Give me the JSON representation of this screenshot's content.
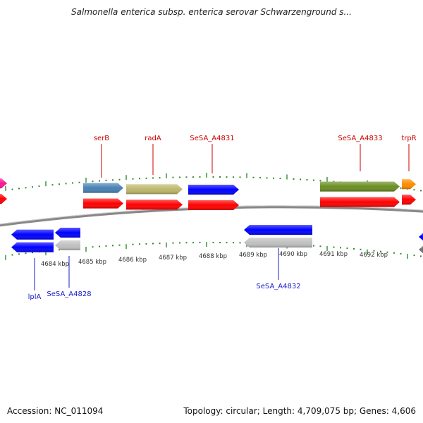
{
  "title": "Salmonella enterica subsp. enterica serovar Schwarzenground s...",
  "footer": {
    "accession": "Accession: NC_011094",
    "summary": "Topology: circular; Length: 4,709,075 bp; Genes: 4,606"
  },
  "colors": {
    "backbone": "#888888",
    "tick": "#2e8b2e",
    "forward_label": "#cc0000",
    "reverse_label": "#1a1acc",
    "scale_text": "#333333"
  },
  "scale": {
    "unit": "kbp",
    "ticks": [
      "4684 kbp",
      "4685 kbp",
      "4686 kbp",
      "4687 kbp",
      "4688 kbp",
      "4689 kbp",
      "4690 kbp",
      "4691 kbp",
      "4692 kbp"
    ]
  },
  "features": [
    {
      "id": "f-left-pink",
      "strand": "+",
      "row": "top",
      "color": "#ff1493",
      "label": ""
    },
    {
      "id": "f-left-red",
      "strand": "+",
      "row": "bottom",
      "color": "#ff0000",
      "label": ""
    },
    {
      "id": "f-serB-gene",
      "strand": "+",
      "row": "top",
      "color": "#4682b4",
      "label": ""
    },
    {
      "id": "f-serB-cds",
      "strand": "+",
      "row": "bottom",
      "color": "#ff0000",
      "label": "serB"
    },
    {
      "id": "f-radA-gene",
      "strand": "+",
      "row": "top",
      "color": "#bdb76b",
      "label": ""
    },
    {
      "id": "f-radA-cds",
      "strand": "+",
      "row": "bottom",
      "color": "#ff0000",
      "label": "radA"
    },
    {
      "id": "f-4831-gene",
      "strand": "+",
      "row": "top",
      "color": "#0000ff",
      "label": ""
    },
    {
      "id": "f-4831-cds",
      "strand": "+",
      "row": "bottom",
      "color": "#ff0000",
      "label": "SeSA_A4831"
    },
    {
      "id": "f-4833-gene",
      "strand": "+",
      "row": "top",
      "color": "#6b8e23",
      "label": ""
    },
    {
      "id": "f-4833-cds",
      "strand": "+",
      "row": "bottom",
      "color": "#ff0000",
      "label": "SeSA_A4833"
    },
    {
      "id": "f-trpR-gene",
      "strand": "+",
      "row": "top",
      "color": "#ff8c00",
      "label": ""
    },
    {
      "id": "f-trpR-cds",
      "strand": "+",
      "row": "bottom",
      "color": "#ff0000",
      "label": "trpR"
    },
    {
      "id": "f-lplA-gene",
      "strand": "-",
      "row": "top",
      "color": "#0000ff",
      "label": ""
    },
    {
      "id": "f-lplA-cds",
      "strand": "-",
      "row": "bottom",
      "color": "#0000ff",
      "label": "lplA"
    },
    {
      "id": "f-4828-gene",
      "strand": "-",
      "row": "top",
      "color": "#0000ff",
      "label": ""
    },
    {
      "id": "f-4828-cds",
      "strand": "-",
      "row": "bottom",
      "color": "#c0c0c0",
      "label": "SeSA_A4828"
    },
    {
      "id": "f-4832-gene",
      "strand": "-",
      "row": "top",
      "color": "#0000ff",
      "label": ""
    },
    {
      "id": "f-4832-cds",
      "strand": "-",
      "row": "bottom",
      "color": "#c0c0c0",
      "label": "SeSA_A4832"
    },
    {
      "id": "f-right-blue",
      "strand": "-",
      "row": "top",
      "color": "#0000ff",
      "label": ""
    },
    {
      "id": "f-right-gray",
      "strand": "-",
      "row": "bottom",
      "color": "#707070",
      "label": ""
    }
  ]
}
